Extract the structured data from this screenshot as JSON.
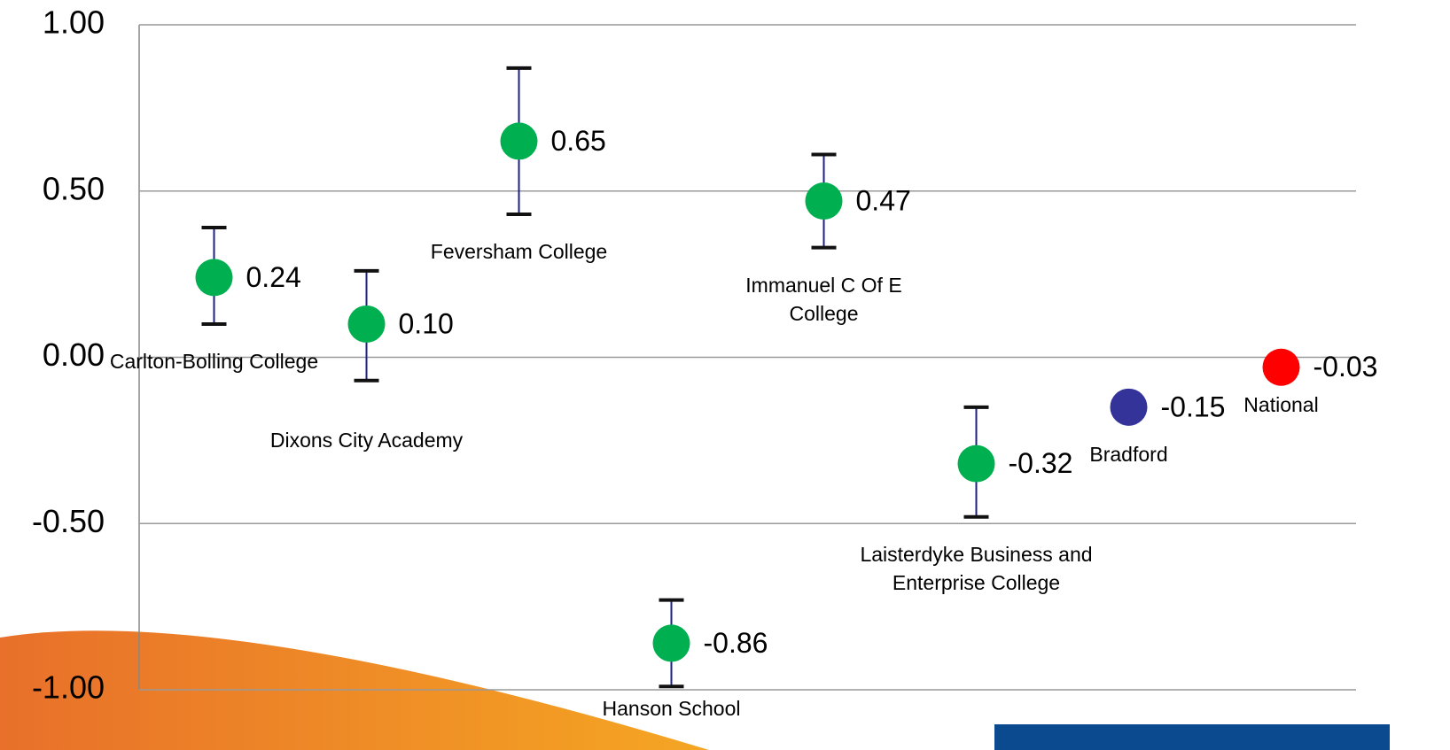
{
  "chart_data": {
    "type": "errorbar",
    "categories": [
      "Carlton-Bolling College",
      "Dixons City Academy",
      "Feversham College",
      "Hanson School",
      "Immanuel C Of E College",
      "Laisterdyke Business and Enterprise College",
      "Bradford",
      "National"
    ],
    "values": [
      0.24,
      0.1,
      0.65,
      -0.86,
      0.47,
      -0.32,
      -0.15,
      -0.03
    ],
    "value_labels": [
      "0.24",
      "0.10",
      "0.65",
      "-0.86",
      "0.47",
      "-0.32",
      "-0.15",
      "-0.03"
    ],
    "ci_low": [
      0.1,
      -0.07,
      0.43,
      -0.99,
      0.33,
      -0.48,
      null,
      null
    ],
    "ci_high": [
      0.39,
      0.26,
      0.87,
      -0.73,
      0.61,
      -0.15,
      null,
      null
    ],
    "colors": [
      "#00b050",
      "#00b050",
      "#00b050",
      "#00b050",
      "#00b050",
      "#00b050",
      "#333399",
      "#ff0000"
    ],
    "ylim": [
      -1,
      1
    ],
    "yticks": [
      {
        "value": -1,
        "label": "-1.00"
      },
      {
        "value": -0.5,
        "label": "-0.50"
      },
      {
        "value": 0,
        "label": "0.00"
      },
      {
        "value": 0.5,
        "label": "0.50"
      },
      {
        "value": 1,
        "label": "1.00"
      }
    ],
    "grid": true
  }
}
